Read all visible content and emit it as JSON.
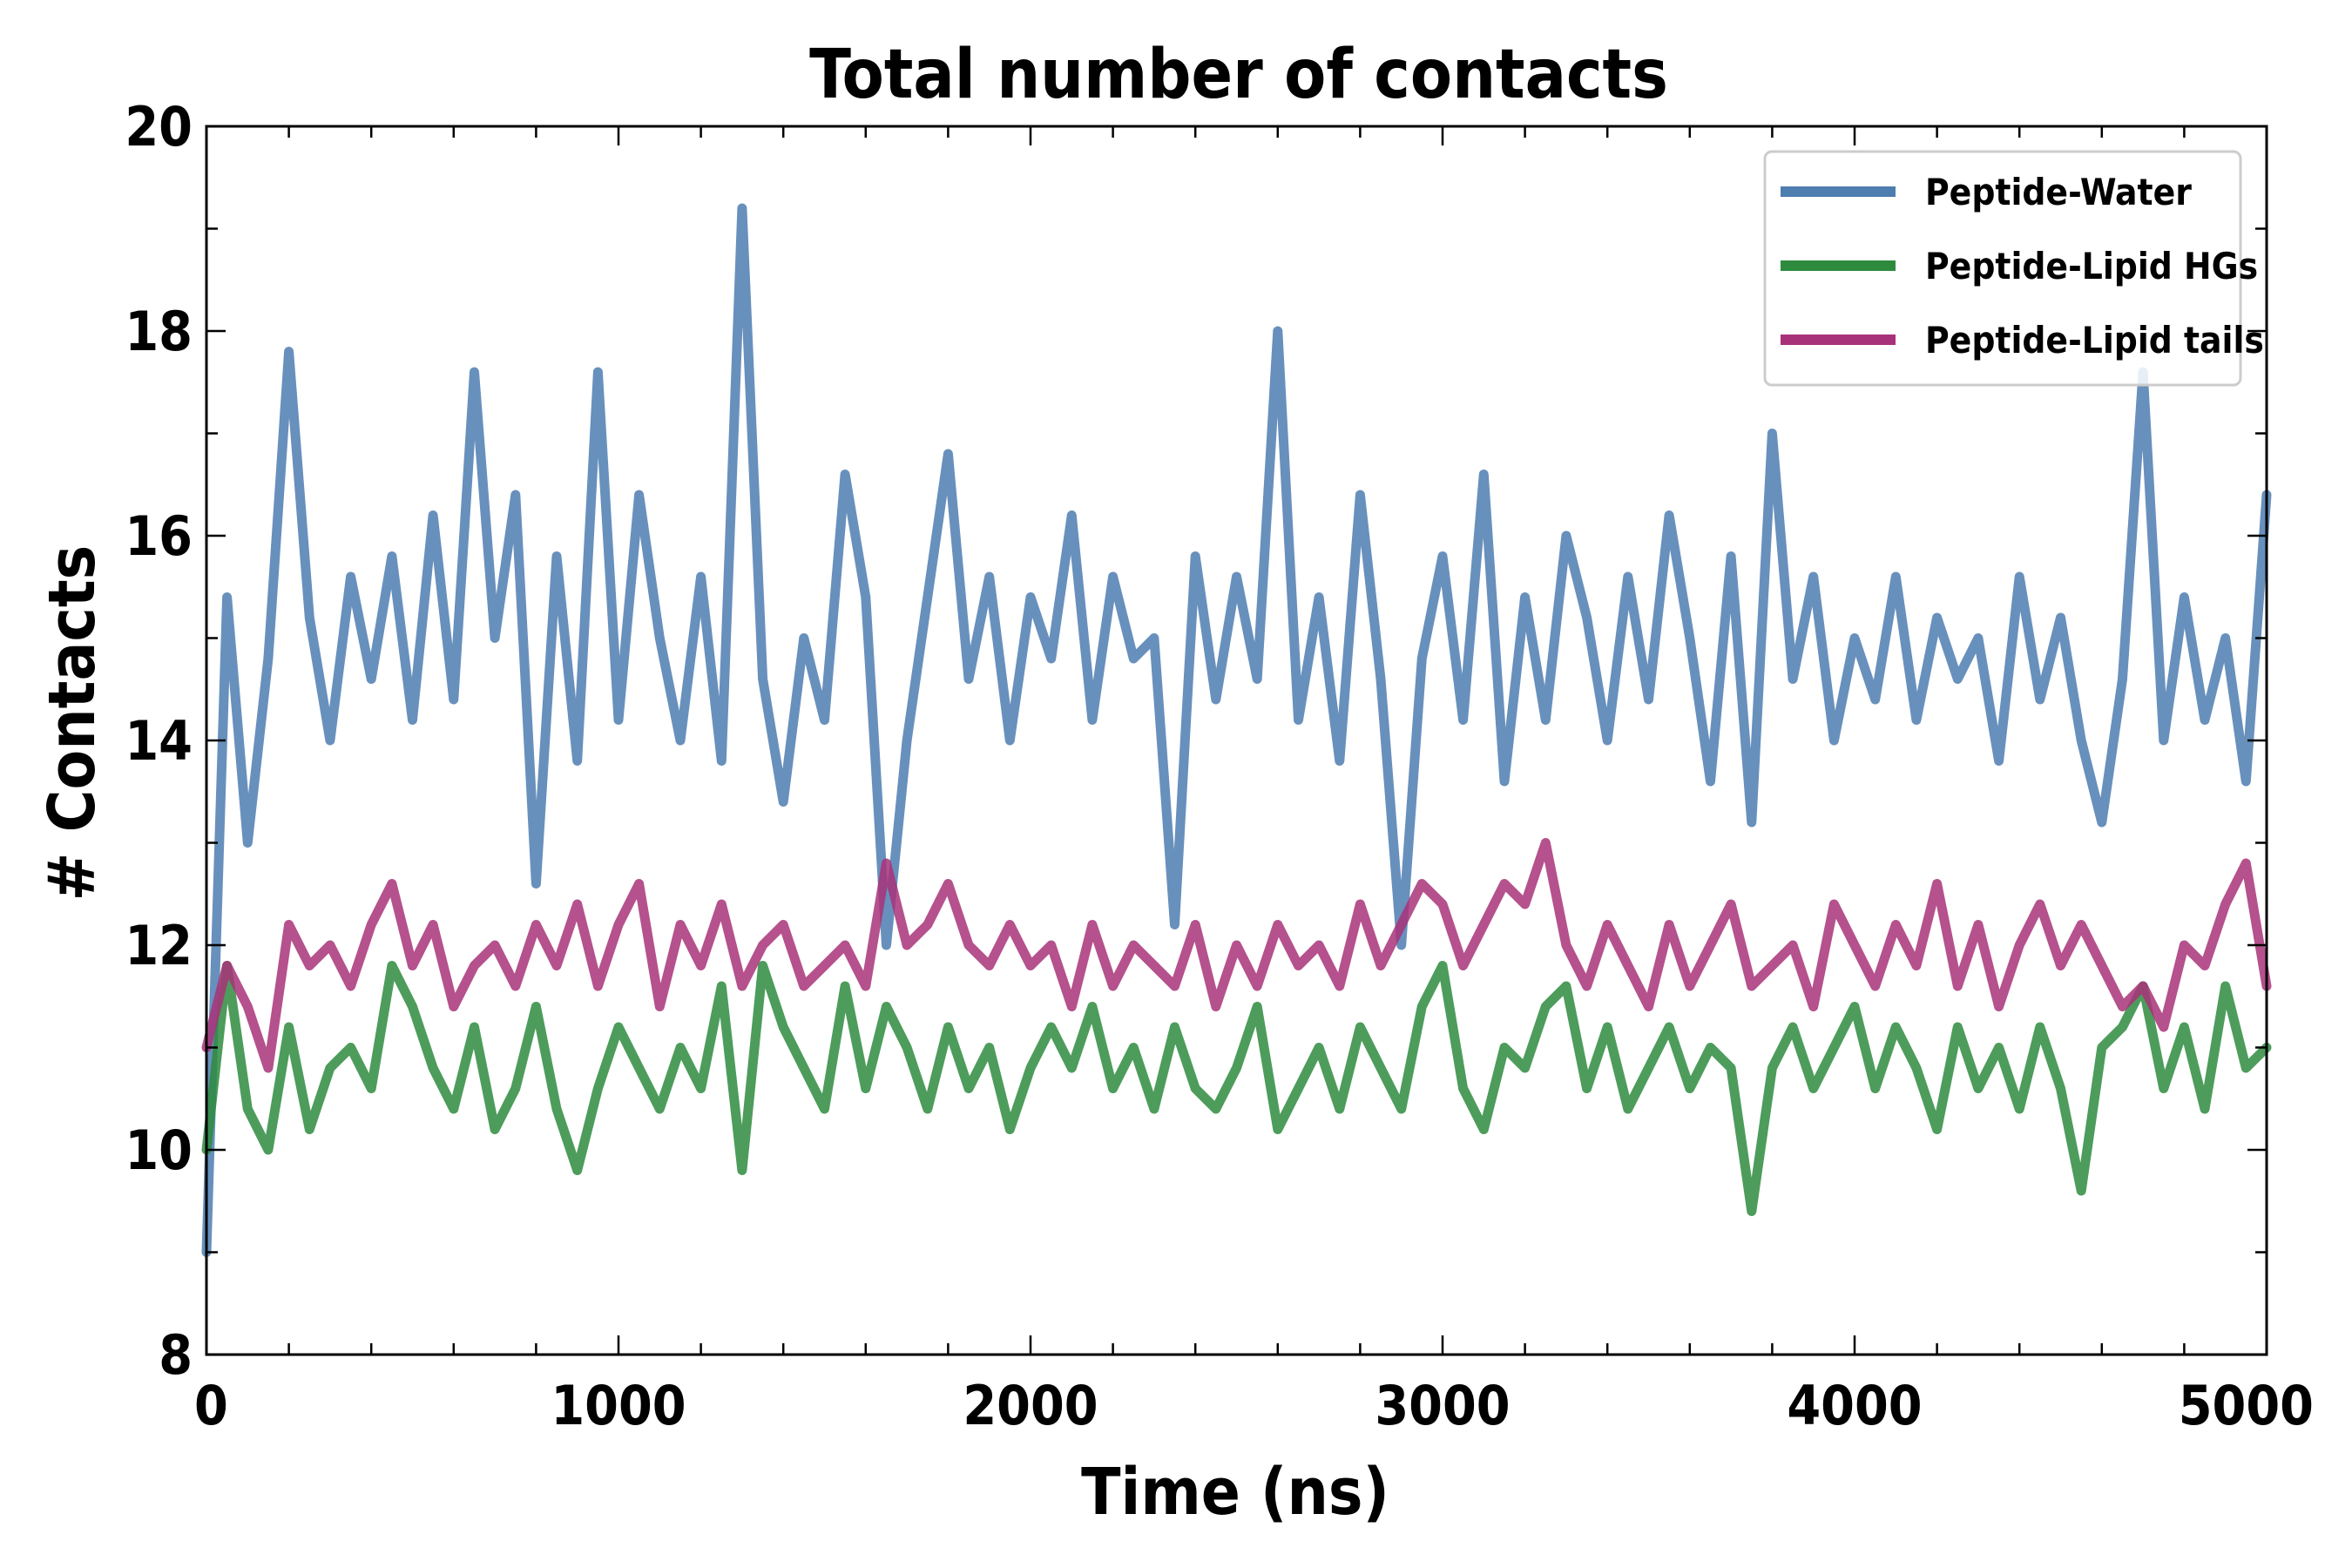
{
  "chart_data": {
    "type": "line",
    "title": "Total number of contacts",
    "xlabel": "Time (ns)",
    "ylabel": "# Contacts",
    "xlim": [
      0,
      5000
    ],
    "ylim": [
      8,
      20
    ],
    "xticks": [
      0,
      1000,
      2000,
      3000,
      4000,
      5000
    ],
    "yticks": [
      8,
      10,
      12,
      14,
      16,
      18,
      20
    ],
    "xtick_labels": [
      "0",
      "1000",
      "2000",
      "3000",
      "4000",
      "5000"
    ],
    "ytick_labels": [
      "8",
      "10",
      "12",
      "14",
      "16",
      "18",
      "20"
    ],
    "grid": false,
    "legend": "top-right",
    "series": [
      {
        "name": "Peptide-Water",
        "color": "#4e7db0",
        "x": [
          0,
          50,
          100,
          150,
          200,
          250,
          300,
          350,
          400,
          450,
          500,
          550,
          600,
          650,
          700,
          750,
          800,
          850,
          900,
          950,
          1000,
          1050,
          1100,
          1150,
          1200,
          1250,
          1300,
          1350,
          1400,
          1450,
          1500,
          1550,
          1600,
          1650,
          1700,
          1750,
          1800,
          1850,
          1900,
          1950,
          2000,
          2050,
          2100,
          2150,
          2200,
          2250,
          2300,
          2350,
          2400,
          2450,
          2500,
          2550,
          2600,
          2650,
          2700,
          2750,
          2800,
          2850,
          2900,
          2950,
          3000,
          3050,
          3100,
          3150,
          3200,
          3250,
          3300,
          3350,
          3400,
          3450,
          3500,
          3550,
          3600,
          3650,
          3700,
          3750,
          3800,
          3850,
          3900,
          3950,
          4000,
          4050,
          4100,
          4150,
          4200,
          4250,
          4300,
          4350,
          4400,
          4450,
          4500,
          4550,
          4600,
          4650,
          4700,
          4750,
          4800,
          4850,
          4900,
          4950,
          5000
        ],
        "values": [
          9.0,
          15.4,
          13.0,
          14.8,
          17.8,
          15.2,
          14.0,
          15.6,
          14.6,
          15.8,
          14.2,
          16.2,
          14.4,
          17.6,
          15.0,
          16.4,
          12.6,
          15.8,
          13.8,
          17.6,
          14.2,
          16.4,
          15.0,
          14.0,
          15.6,
          13.8,
          19.2,
          14.6,
          13.4,
          15.0,
          14.2,
          16.6,
          15.4,
          12.0,
          14.0,
          15.4,
          16.8,
          14.6,
          15.6,
          14.0,
          15.4,
          14.8,
          16.2,
          14.2,
          15.6,
          14.8,
          15.0,
          12.2,
          15.8,
          14.4,
          15.6,
          14.6,
          18.0,
          14.2,
          15.4,
          13.8,
          16.4,
          14.6,
          12.0,
          14.8,
          15.8,
          14.2,
          16.6,
          13.6,
          15.4,
          14.2,
          16.0,
          15.2,
          14.0,
          15.6,
          14.4,
          16.2,
          15.0,
          13.6,
          15.8,
          13.2,
          17.0,
          14.6,
          15.6,
          14.0,
          15.0,
          14.4,
          15.6,
          14.2,
          15.2,
          14.6,
          15.0,
          13.8,
          15.6,
          14.4,
          15.2,
          14.0,
          13.2,
          14.6,
          17.6,
          14.0,
          15.4,
          14.2,
          15.0,
          13.6,
          16.4
        ]
      },
      {
        "name": "Peptide-Lipid HGs",
        "color": "#2e8b3e",
        "x": [
          0,
          50,
          100,
          150,
          200,
          250,
          300,
          350,
          400,
          450,
          500,
          550,
          600,
          650,
          700,
          750,
          800,
          850,
          900,
          950,
          1000,
          1050,
          1100,
          1150,
          1200,
          1250,
          1300,
          1350,
          1400,
          1450,
          1500,
          1550,
          1600,
          1650,
          1700,
          1750,
          1800,
          1850,
          1900,
          1950,
          2000,
          2050,
          2100,
          2150,
          2200,
          2250,
          2300,
          2350,
          2400,
          2450,
          2500,
          2550,
          2600,
          2650,
          2700,
          2750,
          2800,
          2850,
          2900,
          2950,
          3000,
          3050,
          3100,
          3150,
          3200,
          3250,
          3300,
          3350,
          3400,
          3450,
          3500,
          3550,
          3600,
          3650,
          3700,
          3750,
          3800,
          3850,
          3900,
          3950,
          4000,
          4050,
          4100,
          4150,
          4200,
          4250,
          4300,
          4350,
          4400,
          4450,
          4500,
          4550,
          4600,
          4650,
          4700,
          4750,
          4800,
          4850,
          4900,
          4950,
          5000
        ],
        "values": [
          10.0,
          11.8,
          10.4,
          10.0,
          11.2,
          10.2,
          10.8,
          11.0,
          10.6,
          11.8,
          11.4,
          10.8,
          10.4,
          11.2,
          10.2,
          10.6,
          11.4,
          10.4,
          9.8,
          10.6,
          11.2,
          10.8,
          10.4,
          11.0,
          10.6,
          11.6,
          9.8,
          11.8,
          11.2,
          10.8,
          10.4,
          11.6,
          10.6,
          11.4,
          11.0,
          10.4,
          11.2,
          10.6,
          11.0,
          10.2,
          10.8,
          11.2,
          10.8,
          11.4,
          10.6,
          11.0,
          10.4,
          11.2,
          10.6,
          10.4,
          10.8,
          11.4,
          10.2,
          10.6,
          11.0,
          10.4,
          11.2,
          10.8,
          10.4,
          11.4,
          11.8,
          10.6,
          10.2,
          11.0,
          10.8,
          11.4,
          11.6,
          10.6,
          11.2,
          10.4,
          10.8,
          11.2,
          10.6,
          11.0,
          10.8,
          9.4,
          10.8,
          11.2,
          10.6,
          11.0,
          11.4,
          10.6,
          11.2,
          10.8,
          10.2,
          11.2,
          10.6,
          11.0,
          10.4,
          11.2,
          10.6,
          9.6,
          11.0,
          11.2,
          11.6,
          10.6,
          11.2,
          10.4,
          11.6,
          10.8,
          11.0
        ]
      },
      {
        "name": "Peptide-Lipid tails",
        "color": "#a83279",
        "x": [
          0,
          50,
          100,
          150,
          200,
          250,
          300,
          350,
          400,
          450,
          500,
          550,
          600,
          650,
          700,
          750,
          800,
          850,
          900,
          950,
          1000,
          1050,
          1100,
          1150,
          1200,
          1250,
          1300,
          1350,
          1400,
          1450,
          1500,
          1550,
          1600,
          1650,
          1700,
          1750,
          1800,
          1850,
          1900,
          1950,
          2000,
          2050,
          2100,
          2150,
          2200,
          2250,
          2300,
          2350,
          2400,
          2450,
          2500,
          2550,
          2600,
          2650,
          2700,
          2750,
          2800,
          2850,
          2900,
          2950,
          3000,
          3050,
          3100,
          3150,
          3200,
          3250,
          3300,
          3350,
          3400,
          3450,
          3500,
          3550,
          3600,
          3650,
          3700,
          3750,
          3800,
          3850,
          3900,
          3950,
          4000,
          4050,
          4100,
          4150,
          4200,
          4250,
          4300,
          4350,
          4400,
          4450,
          4500,
          4550,
          4600,
          4650,
          4700,
          4750,
          4800,
          4850,
          4900,
          4950,
          5000
        ],
        "values": [
          11.0,
          11.8,
          11.4,
          10.8,
          12.2,
          11.8,
          12.0,
          11.6,
          12.2,
          12.6,
          11.8,
          12.2,
          11.4,
          11.8,
          12.0,
          11.6,
          12.2,
          11.8,
          12.4,
          11.6,
          12.2,
          12.6,
          11.4,
          12.2,
          11.8,
          12.4,
          11.6,
          12.0,
          12.2,
          11.6,
          11.8,
          12.0,
          11.6,
          12.8,
          12.0,
          12.2,
          12.6,
          12.0,
          11.8,
          12.2,
          11.8,
          12.0,
          11.4,
          12.2,
          11.6,
          12.0,
          11.8,
          11.6,
          12.2,
          11.4,
          12.0,
          11.6,
          12.2,
          11.8,
          12.0,
          11.6,
          12.4,
          11.8,
          12.2,
          12.6,
          12.4,
          11.8,
          12.2,
          12.6,
          12.4,
          13.0,
          12.0,
          11.6,
          12.2,
          11.8,
          11.4,
          12.2,
          11.6,
          12.0,
          12.4,
          11.6,
          11.8,
          12.0,
          11.4,
          12.4,
          12.0,
          11.6,
          12.2,
          11.8,
          12.6,
          11.6,
          12.2,
          11.4,
          12.0,
          12.4,
          11.8,
          12.2,
          11.8,
          11.4,
          11.6,
          11.2,
          12.0,
          11.8,
          12.4,
          12.8,
          11.6
        ]
      }
    ]
  }
}
